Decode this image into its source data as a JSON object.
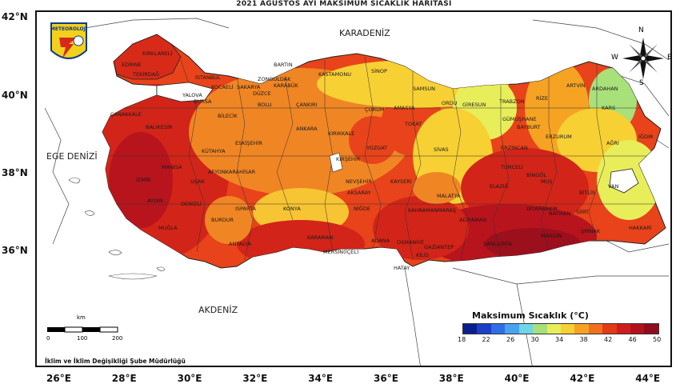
{
  "title": "2021 AĞUSTOS AYI MAKSİMUM SICAKLIK HARİTASI",
  "lat_labels": [
    "42°N",
    "40°N",
    "38°N",
    "36°N"
  ],
  "lon_labels": [
    "26°E",
    "28°E",
    "30°E",
    "32°E",
    "34°E",
    "36°E",
    "38°E",
    "40°E",
    "42°E",
    "44°E"
  ],
  "seas": {
    "north": "KARADENİZ",
    "west": "EGE DENİZİ",
    "south": "AKDENİZ"
  },
  "logo_text": "METEOROLOJİ",
  "compass": {
    "n": "N",
    "e": "E",
    "s": "S",
    "w": "W"
  },
  "scale": {
    "unit": "km",
    "ticks": [
      "0",
      "100",
      "200"
    ]
  },
  "credit": "İklim ve İklim Değişikliği Şube Müdürlüğü",
  "legend": {
    "title": "Maksimum Sıcaklık (°C)",
    "ticks": [
      "18",
      "22",
      "26",
      "30",
      "34",
      "38",
      "42",
      "46",
      "50"
    ],
    "colors": [
      "#0a1f8f",
      "#1c3fc8",
      "#2f6ee6",
      "#4aa3f0",
      "#6fd6e8",
      "#a8e07a",
      "#e8ee5a",
      "#f7d033",
      "#f6a323",
      "#f07020",
      "#e23b16",
      "#cf1c1c",
      "#b3121d",
      "#8e0c1c"
    ]
  },
  "cities": [
    {
      "name": "KIRKLARELİ"
    },
    {
      "name": "EDİRNE"
    },
    {
      "name": "TEKİRDAĞ"
    },
    {
      "name": "İSTANBUL"
    },
    {
      "name": "KOCAELİ"
    },
    {
      "name": "SAKARYA"
    },
    {
      "name": "DÜZCE"
    },
    {
      "name": "ZONGULDAK"
    },
    {
      "name": "BARTIN"
    },
    {
      "name": "KARABÜK"
    },
    {
      "name": "KASTAMONU"
    },
    {
      "name": "SİNOP"
    },
    {
      "name": "SAMSUN"
    },
    {
      "name": "ORDU"
    },
    {
      "name": "GİRESUN"
    },
    {
      "name": "TRABZON"
    },
    {
      "name": "RİZE"
    },
    {
      "name": "ARTVİN"
    },
    {
      "name": "ARDAHAN"
    },
    {
      "name": "KARS"
    },
    {
      "name": "IĞDIR"
    },
    {
      "name": "AĞRI"
    },
    {
      "name": "ERZURUM"
    },
    {
      "name": "BAYBURT"
    },
    {
      "name": "GÜMÜŞHANE"
    },
    {
      "name": "ERZİNCAN"
    },
    {
      "name": "TUNCELİ"
    },
    {
      "name": "BİNGÖL"
    },
    {
      "name": "MUŞ"
    },
    {
      "name": "BİTLİS"
    },
    {
      "name": "VAN"
    },
    {
      "name": "HAKKARİ"
    },
    {
      "name": "ŞIRNAK"
    },
    {
      "name": "SİİRT"
    },
    {
      "name": "BATMAN"
    },
    {
      "name": "MARDİN"
    },
    {
      "name": "DİYARBAKIR"
    },
    {
      "name": "ELAZIĞ"
    },
    {
      "name": "MALATYA"
    },
    {
      "name": "ADIYAMAN"
    },
    {
      "name": "ŞANLIURFA"
    },
    {
      "name": "GAZİANTEP"
    },
    {
      "name": "KİLİS"
    },
    {
      "name": "HATAY"
    },
    {
      "name": "OSMANİYE"
    },
    {
      "name": "ADANA"
    },
    {
      "name": "KAHRAMANMARAŞ"
    },
    {
      "name": "MERSİN(İÇEL)"
    },
    {
      "name": "KARAMAN"
    },
    {
      "name": "KONYA"
    },
    {
      "name": "NİĞDE"
    },
    {
      "name": "KAYSERİ"
    },
    {
      "name": "SİVAS"
    },
    {
      "name": "TOKAT"
    },
    {
      "name": "AMASYA"
    },
    {
      "name": "ÇORUM"
    },
    {
      "name": "YOZGAT"
    },
    {
      "name": "KIRŞEHİR"
    },
    {
      "name": "NEVŞEHİR"
    },
    {
      "name": "AKSARAY"
    },
    {
      "name": "KIRIKKALE"
    },
    {
      "name": "ANKARA"
    },
    {
      "name": "ÇANKIRI"
    },
    {
      "name": "BOLU"
    },
    {
      "name": "BİLECİK"
    },
    {
      "name": "BURSA"
    },
    {
      "name": "YALOVA"
    },
    {
      "name": "BALIKESİR"
    },
    {
      "name": "ÇANAKKALE"
    },
    {
      "name": "ESKİŞEHİR"
    },
    {
      "name": "KÜTAHYA"
    },
    {
      "name": "AFYONKARAHİSAR"
    },
    {
      "name": "UŞAK"
    },
    {
      "name": "MANİSA"
    },
    {
      "name": "İZMİR"
    },
    {
      "name": "AYDIN"
    },
    {
      "name": "DENİZLİ"
    },
    {
      "name": "MUĞLA"
    },
    {
      "name": "BURDUR"
    },
    {
      "name": "ISPARTA"
    },
    {
      "name": "ANTALYA"
    }
  ]
}
